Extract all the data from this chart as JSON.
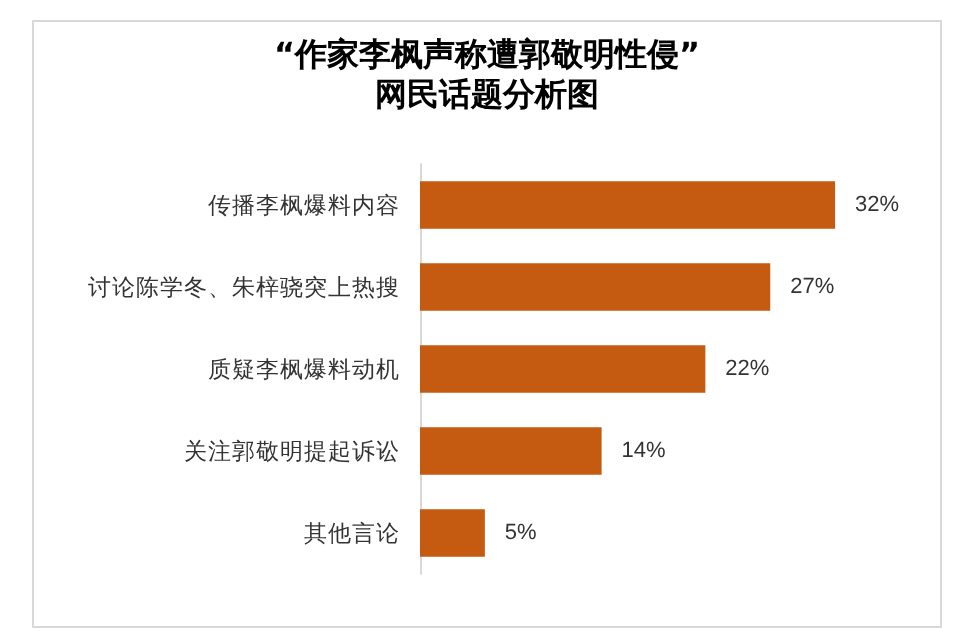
{
  "chart_data": {
    "type": "bar",
    "orientation": "horizontal",
    "title": "“作家李枫声称遭郭敬明性侵”",
    "subtitle": "网民话题分析图",
    "categories": [
      "传播李枫爆料内容",
      "讨论陈学冬、朱梓骁突上热搜",
      "质疑李枫爆料动机",
      "关注郭敬明提起诉讼",
      "其他言论"
    ],
    "values": [
      32,
      27,
      22,
      14,
      5
    ],
    "value_labels": [
      "32%",
      "27%",
      "22%",
      "14%",
      "5%"
    ],
    "color": "#c55a11"
  }
}
